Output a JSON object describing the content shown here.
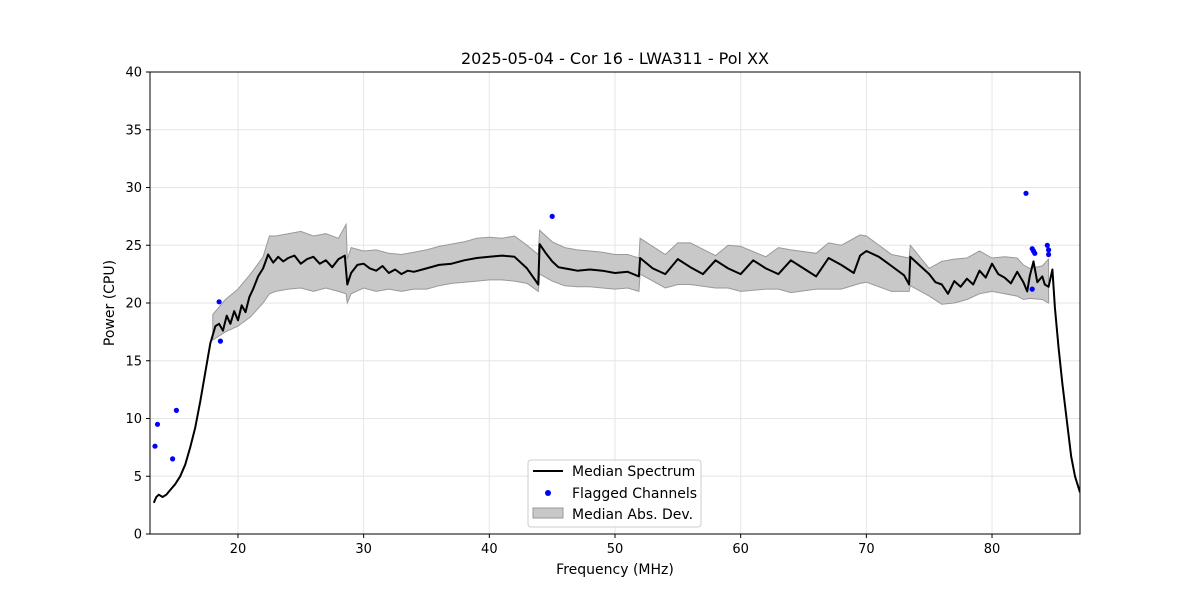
{
  "chart_data": {
    "type": "line",
    "title": "2025-05-04 - Cor 16 - LWA311 - Pol XX",
    "xlabel": "Frequency (MHz)",
    "ylabel": "Power (CPU)",
    "xlim": [
      13,
      87
    ],
    "ylim": [
      0,
      40
    ],
    "xticks": [
      20,
      30,
      40,
      50,
      60,
      70,
      80
    ],
    "yticks": [
      0,
      5,
      10,
      15,
      20,
      25,
      30,
      35,
      40
    ],
    "grid": true,
    "legend_position": "lower center",
    "colors": {
      "median": "#000000",
      "flagged": "#0000ff",
      "band_fill": "#c8c8c8",
      "band_edge": "#999999"
    },
    "series": [
      {
        "name": "Median Spectrum",
        "kind": "line",
        "x": [
          13.3,
          13.5,
          13.7,
          14.0,
          14.3,
          14.6,
          15.0,
          15.4,
          15.8,
          16.2,
          16.6,
          17.0,
          17.4,
          17.8,
          18.2,
          18.5,
          18.8,
          19.1,
          19.4,
          19.7,
          20.0,
          20.3,
          20.6,
          20.9,
          21.2,
          21.6,
          22.0,
          22.4,
          22.8,
          23.2,
          23.6,
          24.0,
          24.5,
          25.0,
          25.5,
          26.0,
          26.5,
          27.0,
          27.5,
          28.0,
          28.5,
          28.7,
          29.0,
          29.5,
          30.0,
          30.5,
          31.0,
          31.5,
          32.0,
          32.5,
          33.0,
          33.5,
          34.0,
          35.0,
          36.0,
          37.0,
          38.0,
          39.0,
          40.0,
          41.0,
          42.0,
          43.0,
          43.9,
          44.0,
          44.5,
          45.0,
          45.5,
          46.0,
          46.5,
          47.0,
          48.0,
          49.0,
          50.0,
          51.0,
          51.9,
          52.0,
          53.0,
          54.0,
          55.0,
          56.0,
          57.0,
          58.0,
          59.0,
          60.0,
          61.0,
          62.0,
          63.0,
          64.0,
          65.0,
          66.0,
          67.0,
          68.0,
          69.0,
          69.5,
          70.0,
          71.0,
          72.0,
          73.0,
          73.4,
          73.5,
          74.0,
          75.0,
          75.5,
          76.0,
          76.5,
          77.0,
          77.5,
          78.0,
          78.5,
          79.0,
          79.5,
          80.0,
          80.5,
          81.0,
          81.5,
          82.0,
          82.5,
          82.8,
          83.0,
          83.3,
          83.6,
          84.0,
          84.2,
          84.5,
          84.8,
          85.0,
          85.3,
          85.6,
          86.0,
          86.3,
          86.6,
          87.0
        ],
        "y": [
          2.7,
          3.2,
          3.4,
          3.2,
          3.4,
          3.8,
          4.3,
          5.0,
          6.0,
          7.5,
          9.2,
          11.5,
          14.0,
          16.5,
          18.0,
          18.2,
          17.6,
          18.9,
          18.2,
          19.3,
          18.5,
          19.8,
          19.2,
          20.5,
          21.2,
          22.3,
          23.0,
          24.2,
          23.5,
          24.0,
          23.6,
          23.9,
          24.1,
          23.4,
          23.8,
          24.0,
          23.4,
          23.7,
          23.1,
          23.8,
          24.1,
          21.6,
          22.6,
          23.3,
          23.4,
          23.0,
          22.8,
          23.2,
          22.6,
          22.9,
          22.5,
          22.8,
          22.7,
          23.0,
          23.3,
          23.4,
          23.7,
          23.9,
          24.0,
          24.1,
          24.0,
          23.0,
          21.6,
          25.1,
          24.3,
          23.6,
          23.1,
          23.0,
          22.9,
          22.8,
          22.9,
          22.8,
          22.6,
          22.7,
          22.3,
          23.9,
          23.0,
          22.5,
          23.8,
          23.1,
          22.5,
          23.7,
          23.0,
          22.5,
          23.7,
          23.0,
          22.5,
          23.7,
          23.0,
          22.3,
          23.9,
          23.3,
          22.6,
          24.1,
          24.5,
          24.0,
          23.2,
          22.4,
          21.6,
          24.0,
          23.5,
          22.5,
          21.8,
          21.6,
          20.8,
          21.9,
          21.4,
          22.1,
          21.6,
          22.8,
          22.2,
          23.4,
          22.5,
          22.2,
          21.7,
          22.7,
          21.8,
          21.0,
          22.3,
          23.6,
          21.8,
          22.3,
          21.6,
          21.4,
          22.9,
          19.6,
          16.1,
          13.0,
          9.4,
          6.7,
          5.0,
          3.6
        ]
      },
      {
        "name": "Flagged Channels",
        "kind": "scatter",
        "x": [
          13.4,
          13.6,
          14.8,
          15.1,
          18.6,
          18.5,
          45.0,
          82.7,
          83.2,
          83.3,
          83.4,
          84.4,
          84.5,
          84.5,
          83.2
        ],
        "y": [
          7.6,
          9.5,
          6.5,
          10.7,
          16.7,
          20.1,
          27.5,
          29.5,
          24.7,
          24.5,
          24.3,
          25.0,
          24.6,
          24.2,
          21.2
        ]
      },
      {
        "name": "Median Abs. Dev.",
        "kind": "band",
        "x": [
          18.0,
          19.0,
          20.0,
          21.0,
          22.0,
          22.5,
          23.0,
          24.0,
          25.0,
          26.0,
          27.0,
          28.0,
          28.6,
          28.7,
          29.0,
          30.0,
          31.0,
          32.0,
          33.0,
          34.0,
          35.0,
          36.0,
          37.0,
          38.0,
          39.0,
          40.0,
          41.0,
          42.0,
          43.0,
          43.9,
          44.0,
          45.0,
          46.0,
          47.0,
          48.0,
          49.0,
          50.0,
          51.0,
          51.9,
          52.0,
          54.0,
          55.0,
          56.0,
          58.0,
          59.0,
          60.0,
          62.0,
          63.0,
          64.0,
          66.0,
          67.0,
          68.0,
          69.5,
          70.0,
          72.0,
          73.4,
          73.5,
          75.0,
          76.0,
          77.0,
          78.0,
          79.0,
          80.0,
          81.0,
          82.0,
          82.5,
          83.0,
          84.0,
          84.5
        ],
        "lower": [
          16.8,
          17.5,
          18.0,
          18.8,
          20.0,
          20.8,
          21.0,
          21.2,
          21.3,
          21.0,
          21.3,
          21.0,
          20.8,
          20.0,
          20.8,
          21.3,
          21.0,
          21.2,
          21.0,
          21.2,
          21.2,
          21.5,
          21.7,
          21.8,
          21.9,
          22.0,
          22.0,
          21.9,
          21.7,
          21.0,
          22.5,
          21.9,
          21.5,
          21.4,
          21.4,
          21.3,
          21.2,
          21.3,
          21.0,
          22.5,
          21.3,
          21.6,
          21.6,
          21.3,
          21.3,
          21.0,
          21.2,
          21.2,
          20.9,
          21.2,
          21.2,
          21.2,
          21.7,
          21.8,
          21.0,
          21.0,
          21.5,
          20.6,
          19.9,
          20.0,
          20.3,
          20.8,
          21.0,
          20.8,
          20.6,
          20.3,
          20.4,
          20.3,
          20.0
        ],
        "upper": [
          19.0,
          20.3,
          21.2,
          22.5,
          24.0,
          25.8,
          25.8,
          26.0,
          26.2,
          25.8,
          26.0,
          25.6,
          26.8,
          23.8,
          24.8,
          24.5,
          24.6,
          24.3,
          24.2,
          24.4,
          24.6,
          24.9,
          25.1,
          25.3,
          25.6,
          25.7,
          25.6,
          25.8,
          25.0,
          24.2,
          26.3,
          25.3,
          24.8,
          24.6,
          24.5,
          24.4,
          24.2,
          24.2,
          23.9,
          25.6,
          24.2,
          25.2,
          25.2,
          24.1,
          25.0,
          24.9,
          24.0,
          24.8,
          24.6,
          24.3,
          25.2,
          25.0,
          25.9,
          25.8,
          24.2,
          23.9,
          25.0,
          23.0,
          23.6,
          23.8,
          23.9,
          24.5,
          23.9,
          24.0,
          23.9,
          23.3,
          23.0,
          23.2,
          23.8
        ]
      }
    ]
  },
  "legend": {
    "items": [
      {
        "label": "Median Spectrum",
        "kind": "line"
      },
      {
        "label": "Flagged Channels",
        "kind": "dot"
      },
      {
        "label": "Median Abs. Dev.",
        "kind": "patch"
      }
    ]
  }
}
